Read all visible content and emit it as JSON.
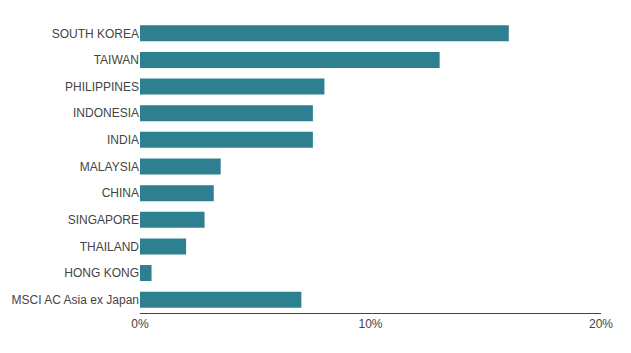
{
  "chart_data": {
    "type": "bar",
    "orientation": "horizontal",
    "categories": [
      "SOUTH KOREA",
      "TAIWAN",
      "PHILIPPINES",
      "INDONESIA",
      "INDIA",
      "MALAYSIA",
      "CHINA",
      "SINGAPORE",
      "THAILAND",
      "HONG KONG",
      "MSCI AC Asia ex Japan"
    ],
    "values": [
      16.0,
      13.0,
      8.0,
      7.5,
      7.5,
      3.5,
      3.2,
      2.8,
      2.0,
      0.5,
      7.0
    ],
    "color": "#2e7f8f",
    "xlim": [
      0,
      20
    ],
    "xticks": [
      {
        "value": 0,
        "label": "0%"
      },
      {
        "value": 10,
        "label": "10%"
      },
      {
        "value": 20,
        "label": "20%"
      }
    ],
    "grid": false
  }
}
